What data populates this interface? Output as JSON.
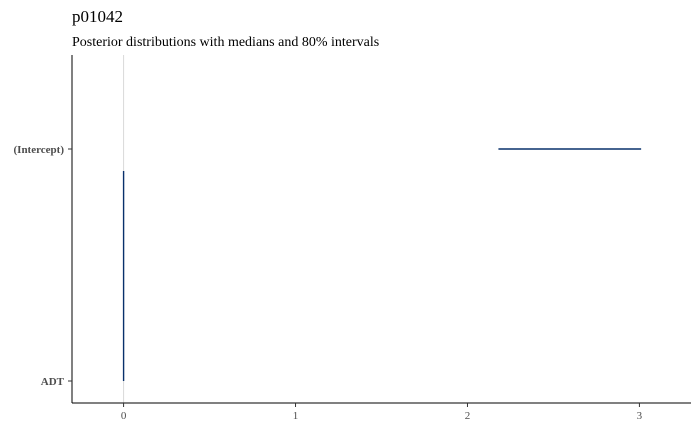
{
  "chart_data": {
    "type": "interval",
    "title": "p01042",
    "subtitle": "Posterior distributions with medians and 80% intervals",
    "xlabel": "",
    "ylabel": "",
    "xlim": [
      -0.3,
      3.3
    ],
    "x_ticks": [
      0,
      1,
      2,
      3
    ],
    "x_tick_labels": [
      "0",
      "1",
      "2",
      "3"
    ],
    "reference_line": 0,
    "grid": false,
    "colors": {
      "interval": "#08306b",
      "reference_line": "#d9d9d9"
    },
    "parameters": [
      {
        "name": "(Intercept)",
        "low": 2.18,
        "median": 2.6,
        "high": 3.01
      },
      {
        "name": "ADT",
        "low": 0.0,
        "median": 0.0,
        "high": 0.0
      }
    ],
    "density_spike": {
      "parameter": "ADT",
      "x": 0
    }
  }
}
